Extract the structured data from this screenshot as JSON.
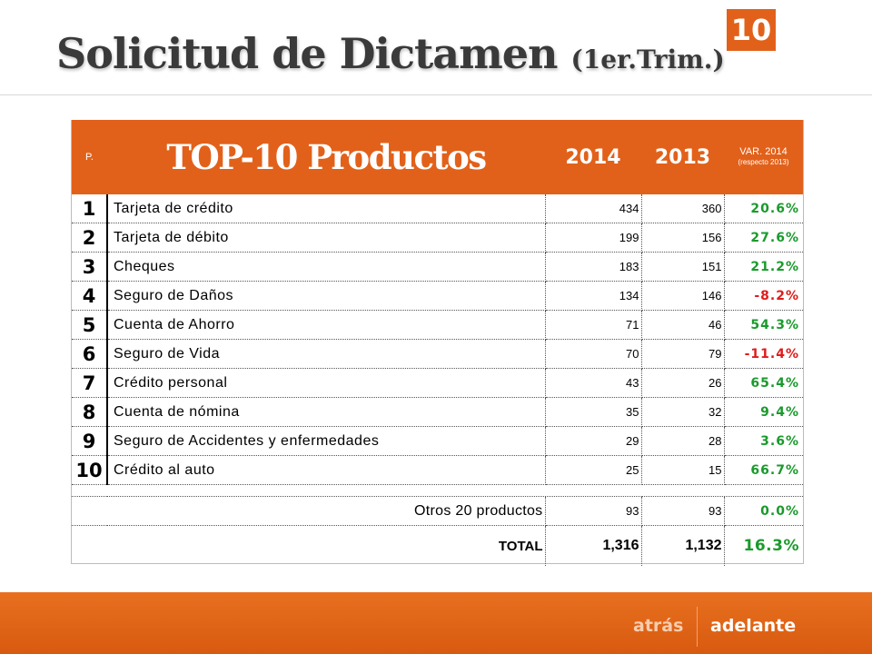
{
  "header": {
    "title": "Solicitud de Dictamen",
    "subtitle": "(1er.Trim.)",
    "page_badge": "10"
  },
  "table": {
    "columns": {
      "rank": "P.",
      "product": "TOP-10 Productos",
      "y2014": "2014",
      "y2013": "2013",
      "var": "VAR. 2014",
      "var_note": "(respecto 2013)"
    },
    "rows": [
      {
        "rank": "1",
        "product": "Tarjeta de crédito",
        "v2014": "434",
        "v2013": "360",
        "var": "20.6%"
      },
      {
        "rank": "2",
        "product": "Tarjeta de débito",
        "v2014": "199",
        "v2013": "156",
        "var": "27.6%"
      },
      {
        "rank": "3",
        "product": "Cheques",
        "v2014": "183",
        "v2013": "151",
        "var": "21.2%"
      },
      {
        "rank": "4",
        "product": "Seguro de Daños",
        "v2014": "134",
        "v2013": "146",
        "var": "-8.2%"
      },
      {
        "rank": "5",
        "product": "Cuenta de Ahorro",
        "v2014": "71",
        "v2013": "46",
        "var": "54.3%"
      },
      {
        "rank": "6",
        "product": "Seguro de Vida",
        "v2014": "70",
        "v2013": "79",
        "var": "-11.4%"
      },
      {
        "rank": "7",
        "product": "Crédito personal",
        "v2014": "43",
        "v2013": "26",
        "var": "65.4%"
      },
      {
        "rank": "8",
        "product": "Cuenta de nómina",
        "v2014": "35",
        "v2013": "32",
        "var": "9.4%"
      },
      {
        "rank": "9",
        "product": "Seguro de Accidentes y enfermedades",
        "v2014": "29",
        "v2013": "28",
        "var": "3.6%"
      },
      {
        "rank": "10",
        "product": "Crédito al auto",
        "v2014": "25",
        "v2013": "15",
        "var": "66.7%"
      }
    ],
    "others": {
      "label": "Otros 20 productos",
      "v2014": "93",
      "v2013": "93",
      "var": "0.0%"
    },
    "total": {
      "label": "TOTAL",
      "v2014": "1,316",
      "v2013": "1,132",
      "var": "16.3%"
    }
  },
  "colors": {
    "accent": "#e2611a",
    "positive": "#1a9a2c",
    "negative": "#e01b1b"
  },
  "nav": {
    "back_label": "atrás",
    "next_label": "adelante"
  }
}
